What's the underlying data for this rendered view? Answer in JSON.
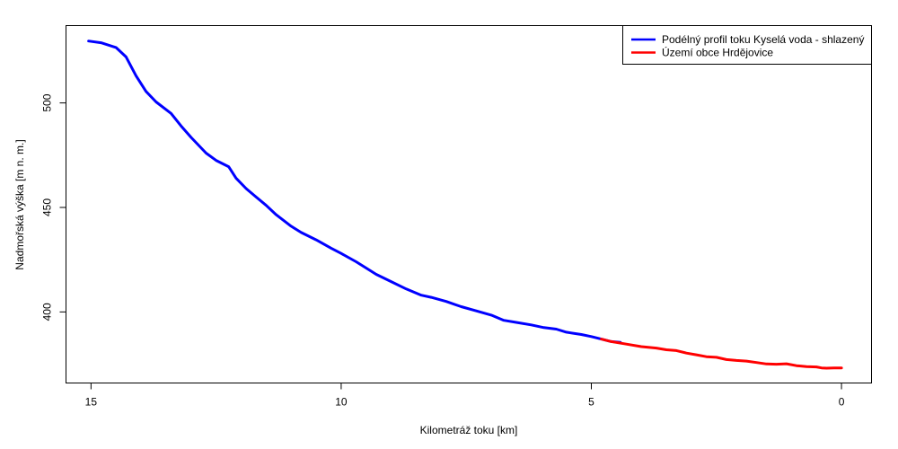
{
  "chart_data": {
    "type": "line",
    "title": "",
    "xlabel": "Kilometráž toku [km]",
    "ylabel": "Nadmořská výška [m n. m.]",
    "x_reversed": true,
    "xlim": [
      15.5,
      -0.6
    ],
    "ylim": [
      366,
      537
    ],
    "xticks": [
      15,
      10,
      5,
      0
    ],
    "yticks": [
      400,
      450,
      500
    ],
    "grid": false,
    "legend_position": "top-right",
    "series": [
      {
        "name": "Podélný profil toku Kyselá voda - shlazený",
        "color": "#0000ff",
        "x": [
          15.05,
          14.8,
          14.5,
          14.3,
          14.1,
          13.9,
          13.7,
          13.4,
          13.2,
          13.0,
          12.7,
          12.5,
          12.25,
          12.1,
          11.9,
          11.7,
          11.5,
          11.3,
          11.0,
          10.8,
          10.5,
          10.2,
          10.0,
          9.7,
          9.5,
          9.3,
          9.0,
          8.7,
          8.4,
          8.2,
          7.9,
          7.6,
          7.3,
          7.0,
          6.75,
          6.5,
          6.2,
          5.95,
          5.7,
          5.5,
          5.2,
          5.0,
          4.8,
          4.6,
          4.42
        ],
        "y": [
          529.6,
          528.8,
          526.5,
          522.0,
          513.0,
          505.5,
          500.5,
          495.0,
          489.0,
          483.5,
          476.0,
          472.5,
          469.5,
          464.0,
          459.0,
          455.0,
          451.0,
          446.5,
          441.0,
          438.0,
          434.5,
          430.5,
          428.0,
          424.0,
          421.0,
          418.0,
          414.5,
          411.0,
          408.0,
          407.0,
          405.0,
          402.5,
          400.5,
          398.5,
          396.0,
          395.0,
          393.8,
          392.5,
          391.8,
          390.3,
          389.2,
          388.2,
          387.0,
          385.8,
          385.4
        ]
      },
      {
        "name": "Území obce Hrdějovice",
        "color": "#ff0000",
        "x": [
          4.8,
          4.6,
          4.3,
          4.0,
          3.7,
          3.5,
          3.3,
          3.1,
          2.9,
          2.7,
          2.5,
          2.3,
          2.1,
          1.9,
          1.7,
          1.5,
          1.3,
          1.1,
          0.9,
          0.7,
          0.5,
          0.4,
          0.3,
          0.15,
          0.0
        ],
        "y": [
          387.0,
          385.8,
          384.6,
          383.4,
          382.7,
          381.9,
          381.5,
          380.3,
          379.5,
          378.6,
          378.3,
          377.2,
          376.8,
          376.5,
          375.8,
          375.1,
          375.0,
          375.2,
          374.3,
          373.8,
          373.7,
          373.2,
          373.1,
          373.2,
          373.2
        ]
      }
    ]
  }
}
